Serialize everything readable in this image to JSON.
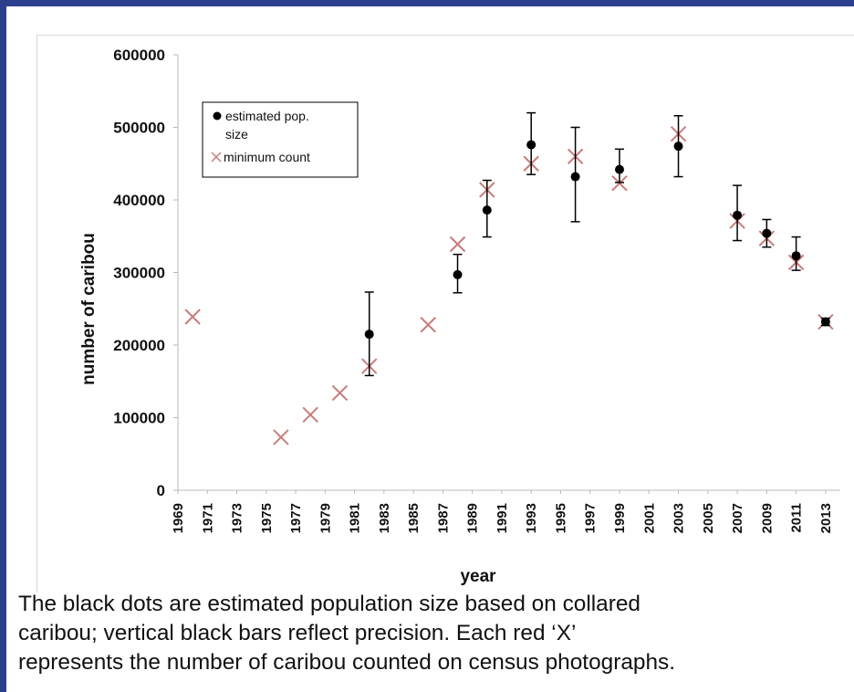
{
  "chart_data": {
    "type": "scatter",
    "title": "",
    "xlabel": "year",
    "ylabel": "number of caribou",
    "ylim": [
      0,
      600000
    ],
    "xlim": [
      1969,
      2014
    ],
    "yticks": [
      0,
      100000,
      200000,
      300000,
      400000,
      500000,
      600000
    ],
    "ytick_labels": [
      "0",
      "100000",
      "200000",
      "300000",
      "400000",
      "500000",
      "600000"
    ],
    "xtick_labels": [
      "1969",
      "1971",
      "1973",
      "1975",
      "1977",
      "1979",
      "1981",
      "1983",
      "1985",
      "1987",
      "1989",
      "1991",
      "1993",
      "1995",
      "1997",
      "1999",
      "2001",
      "2003",
      "2005",
      "2007",
      "2009",
      "2011",
      "2013"
    ],
    "grid": false,
    "legend_position": "top-left",
    "series": [
      {
        "name": "estimated pop. size",
        "marker": "dot",
        "color": "#000000",
        "points": [
          {
            "x": 1982,
            "y": 215000,
            "low": 158000,
            "high": 273000
          },
          {
            "x": 1988,
            "y": 297000,
            "low": 272000,
            "high": 325000
          },
          {
            "x": 1990,
            "y": 386000,
            "low": 349000,
            "high": 427000
          },
          {
            "x": 1993,
            "y": 476000,
            "low": 435000,
            "high": 520000
          },
          {
            "x": 1996,
            "y": 432000,
            "low": 370000,
            "high": 500000
          },
          {
            "x": 1999,
            "y": 442000,
            "low": 424000,
            "high": 470000
          },
          {
            "x": 2003,
            "y": 474000,
            "low": 432000,
            "high": 516000
          },
          {
            "x": 2007,
            "y": 379000,
            "low": 344000,
            "high": 420000
          },
          {
            "x": 2009,
            "y": 354000,
            "low": 335000,
            "high": 373000
          },
          {
            "x": 2011,
            "y": 323000,
            "low": 303000,
            "high": 349000
          },
          {
            "x": 2013,
            "y": 232000,
            "low": 227000,
            "high": 237000
          }
        ]
      },
      {
        "name": "minimum count",
        "marker": "x",
        "color": "#c87c7c",
        "points": [
          {
            "x": 1970,
            "y": 239000
          },
          {
            "x": 1976,
            "y": 73000
          },
          {
            "x": 1978,
            "y": 104000
          },
          {
            "x": 1980,
            "y": 134000
          },
          {
            "x": 1982,
            "y": 171000
          },
          {
            "x": 1986,
            "y": 228000
          },
          {
            "x": 1988,
            "y": 339000
          },
          {
            "x": 1990,
            "y": 414000
          },
          {
            "x": 1993,
            "y": 450000
          },
          {
            "x": 1996,
            "y": 460000
          },
          {
            "x": 1999,
            "y": 423000
          },
          {
            "x": 2003,
            "y": 491000
          },
          {
            "x": 2007,
            "y": 371000
          },
          {
            "x": 2009,
            "y": 347000
          },
          {
            "x": 2011,
            "y": 314000
          },
          {
            "x": 2013,
            "y": 232000
          }
        ]
      }
    ]
  },
  "legend": {
    "item1_line1": "estimated pop.",
    "item1_line2": "size",
    "item2": "minimum count"
  },
  "caption": {
    "line1": "The black dots are estimated population size based on collared",
    "line2": "caribou; vertical black bars reflect precision. Each red ‘X’",
    "line3": "represents the number of caribou counted on census photographs."
  },
  "colors": {
    "frame_border": "#2b3f8c",
    "dot": "#000000",
    "x_marker": "#c87c7c"
  }
}
